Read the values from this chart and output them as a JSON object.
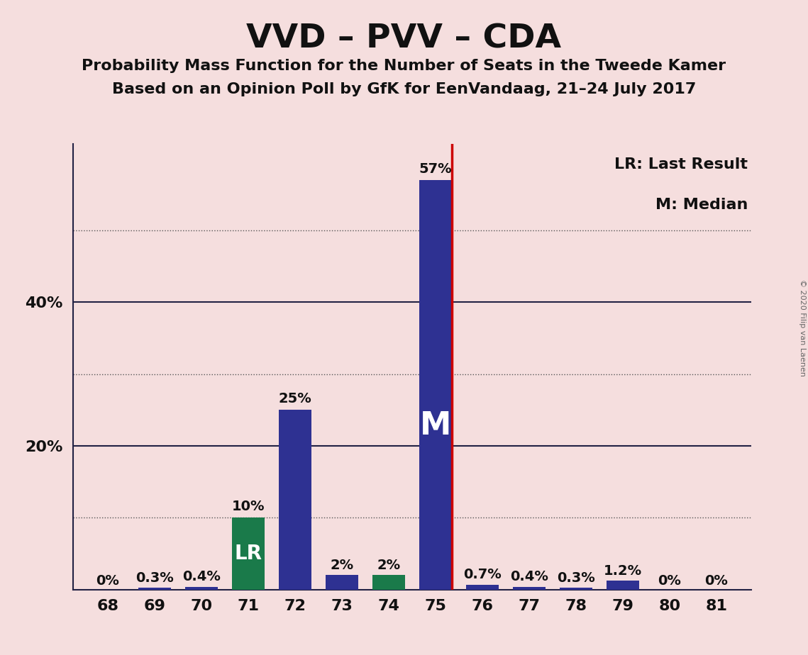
{
  "title": "VVD – PVV – CDA",
  "subtitle1": "Probability Mass Function for the Number of Seats in the Tweede Kamer",
  "subtitle2": "Based on an Opinion Poll by GfK for EenVandaag, 21–24 July 2017",
  "copyright": "© 2020 Filip van Laenen",
  "categories": [
    68,
    69,
    70,
    71,
    72,
    73,
    74,
    75,
    76,
    77,
    78,
    79,
    80,
    81
  ],
  "values": [
    0.0,
    0.3,
    0.4,
    10.0,
    25.0,
    2.0,
    2.0,
    57.0,
    0.7,
    0.4,
    0.3,
    1.2,
    0.0,
    0.0
  ],
  "labels": [
    "0%",
    "0.3%",
    "0.4%",
    "10%",
    "25%",
    "2%",
    "2%",
    "57%",
    "0.7%",
    "0.4%",
    "0.3%",
    "1.2%",
    "0%",
    "0%"
  ],
  "bar_colors": [
    "#2e3192",
    "#2e3192",
    "#2e3192",
    "#1a7a4a",
    "#2e3192",
    "#2e3192",
    "#1a7a4a",
    "#2e3192",
    "#2e3192",
    "#2e3192",
    "#2e3192",
    "#2e3192",
    "#2e3192",
    "#2e3192"
  ],
  "last_result_seat": 71,
  "median_seat": 75,
  "lr_label": "LR",
  "median_label": "M",
  "legend_lr": "LR: Last Result",
  "legend_m": "M: Median",
  "background_color": "#f5dede",
  "bar_navy": "#2e3192",
  "bar_green": "#1a7a4a",
  "lr_line_color": "#cc0000",
  "ytick_labels_show": [
    "20%",
    "40%"
  ],
  "ytick_labels_show_vals": [
    20,
    40
  ],
  "grid_dotted_values": [
    10,
    30,
    50
  ],
  "grid_solid_values": [
    20,
    40
  ],
  "ymax": 62,
  "bar_width": 0.7,
  "label_fontsize": 14,
  "tick_fontsize": 16
}
